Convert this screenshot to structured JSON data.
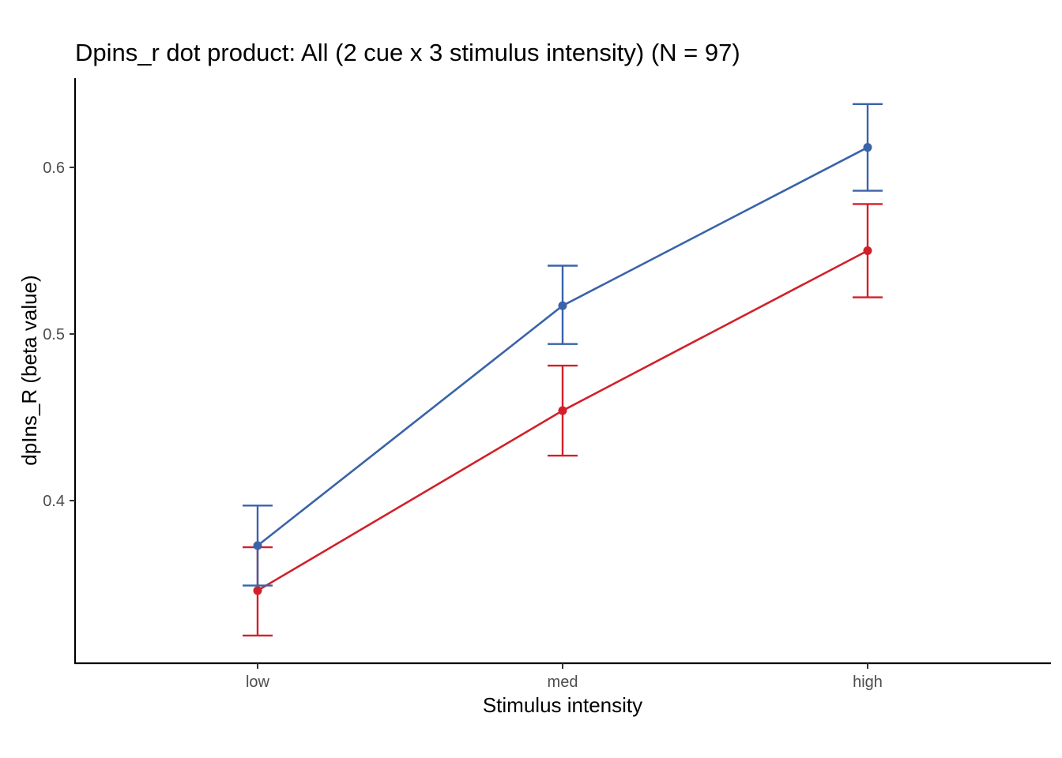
{
  "chart_data": {
    "type": "line",
    "title": "Dpins_r dot product: All (2 cue x 3 stimulus intensity) (N = 97)",
    "xlabel": "Stimulus intensity",
    "ylabel": "dpIns_R  (beta value)",
    "categories": [
      "low",
      "med",
      "high"
    ],
    "y_ticks": [
      "0.4",
      "0.5",
      "0.6"
    ],
    "y_tick_values": [
      0.4,
      0.5,
      0.6
    ],
    "ylim": [
      0.302,
      0.65
    ],
    "grid": false,
    "legend": "none",
    "series": [
      {
        "color": "#D1202A",
        "values": [
          0.346,
          0.454,
          0.55
        ],
        "error_low": [
          0.319,
          0.427,
          0.522
        ],
        "error_high": [
          0.372,
          0.481,
          0.578
        ]
      },
      {
        "color": "#3A63A8",
        "values": [
          0.373,
          0.517,
          0.612
        ],
        "error_low": [
          0.349,
          0.494,
          0.586
        ],
        "error_high": [
          0.397,
          0.541,
          0.638
        ]
      }
    ]
  }
}
